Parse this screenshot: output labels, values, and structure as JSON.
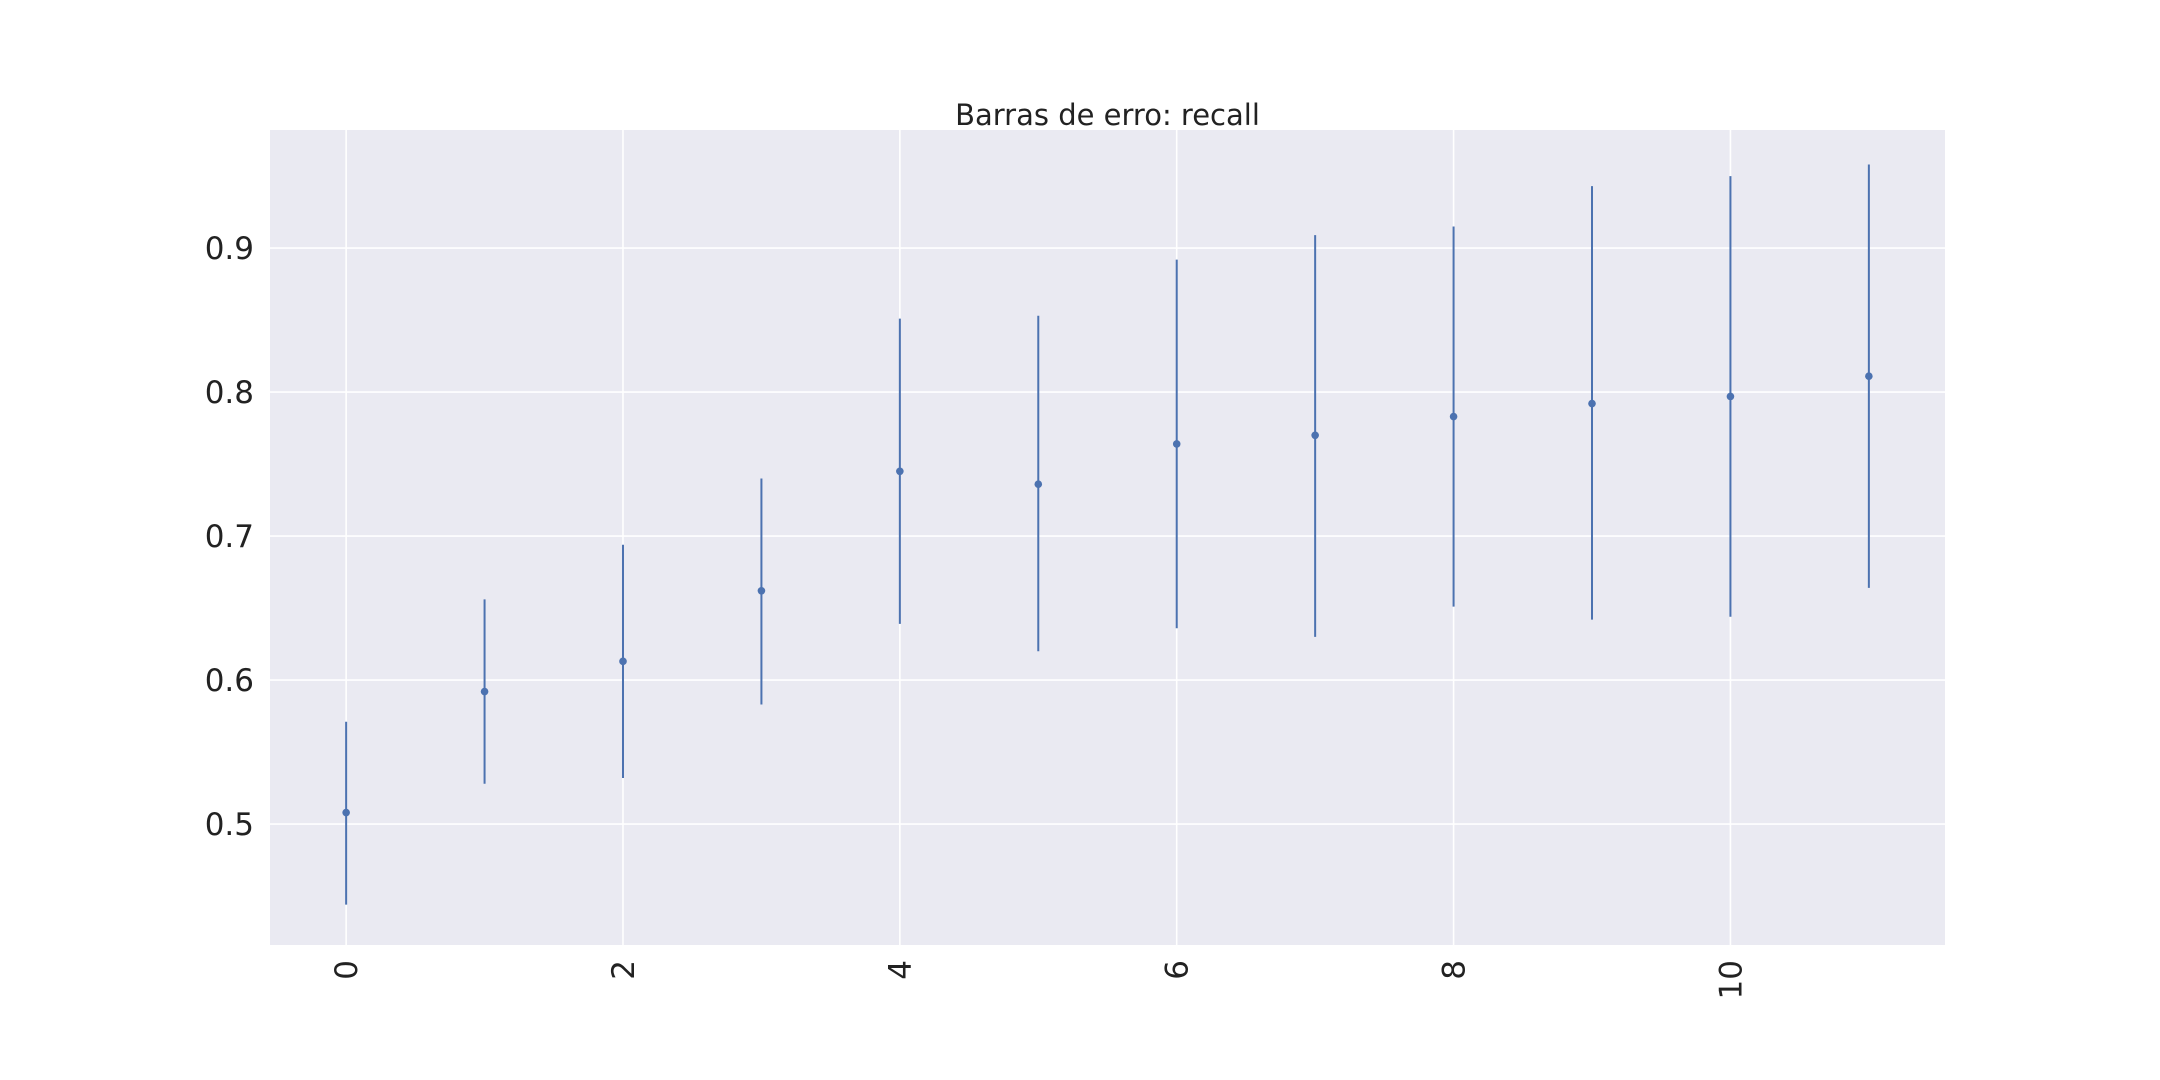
{
  "chart_data": {
    "type": "errorbar",
    "title": "Barras de erro: recall",
    "xlabel": "",
    "ylabel": "",
    "x": [
      0,
      1,
      2,
      3,
      4,
      5,
      6,
      7,
      8,
      9,
      10,
      11
    ],
    "y": [
      0.508,
      0.592,
      0.613,
      0.662,
      0.745,
      0.736,
      0.764,
      0.77,
      0.783,
      0.792,
      0.797,
      0.811
    ],
    "lower": [
      0.444,
      0.528,
      0.532,
      0.583,
      0.639,
      0.62,
      0.636,
      0.63,
      0.651,
      0.642,
      0.644,
      0.664
    ],
    "upper": [
      0.571,
      0.656,
      0.694,
      0.74,
      0.851,
      0.853,
      0.892,
      0.909,
      0.915,
      0.943,
      0.95,
      0.958
    ],
    "xlim": [
      -0.55,
      11.55
    ],
    "ylim": [
      0.416,
      0.982
    ],
    "xticks": [
      0,
      2,
      4,
      6,
      8,
      10
    ],
    "xtick_labels": [
      "0",
      "2",
      "4",
      "6",
      "8",
      "10"
    ],
    "yticks": [
      0.5,
      0.6,
      0.7,
      0.8,
      0.9
    ],
    "ytick_labels": [
      "0.5",
      "0.6",
      "0.7",
      "0.8",
      "0.9"
    ],
    "xtick_rotation": "vertical",
    "grid": true,
    "legend": "none",
    "colors": {
      "plot_background": "#eaeaf2",
      "grid": "#ffffff",
      "series": "#4c72b0"
    }
  }
}
